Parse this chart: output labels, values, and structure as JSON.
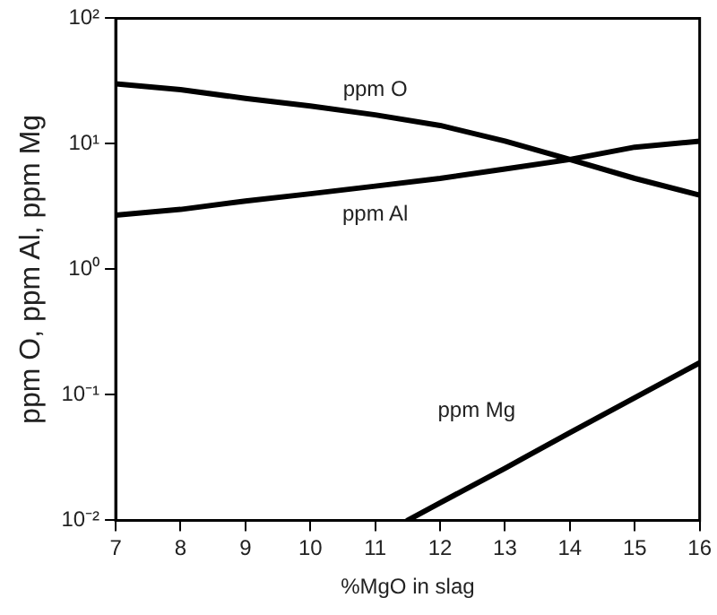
{
  "chart_data": {
    "type": "line",
    "xlabel": "%MgO in slag",
    "ylabel": "ppm O, ppm Al, ppm Mg",
    "log": "y",
    "grid": false,
    "legend": false,
    "marker": "none",
    "line_style": "solid",
    "xlim": [
      7,
      16
    ],
    "xticks": [
      7,
      8,
      9,
      10,
      11,
      12,
      13,
      14,
      15,
      16
    ],
    "ylim": [
      0.01,
      100
    ],
    "yticks": [
      {
        "value": 0.01,
        "label": "10⁻²"
      },
      {
        "value": 0.1,
        "label": "10⁻¹"
      },
      {
        "value": 1,
        "label": "10⁰"
      },
      {
        "value": 10,
        "label": "10¹"
      },
      {
        "value": 100,
        "label": "10²"
      }
    ],
    "series": [
      {
        "name": "ppm O",
        "color": "#000000",
        "x": [
          7,
          8,
          9,
          10,
          11,
          12,
          13,
          14,
          15,
          16
        ],
        "values": [
          30,
          27,
          23,
          20,
          17,
          14,
          10.5,
          7.5,
          5.3,
          3.9
        ]
      },
      {
        "name": "ppm Al",
        "color": "#000000",
        "x": [
          7,
          8,
          9,
          10,
          11,
          12,
          13,
          14,
          15,
          16
        ],
        "values": [
          2.7,
          3.0,
          3.5,
          4.0,
          4.6,
          5.3,
          6.3,
          7.5,
          9.4,
          10.5
        ]
      },
      {
        "name": "ppm Mg",
        "color": "#000000",
        "x": [
          11.5,
          12,
          13,
          14,
          15,
          16
        ],
        "values": [
          0.01,
          0.0138,
          0.026,
          0.05,
          0.095,
          0.18
        ]
      }
    ]
  }
}
